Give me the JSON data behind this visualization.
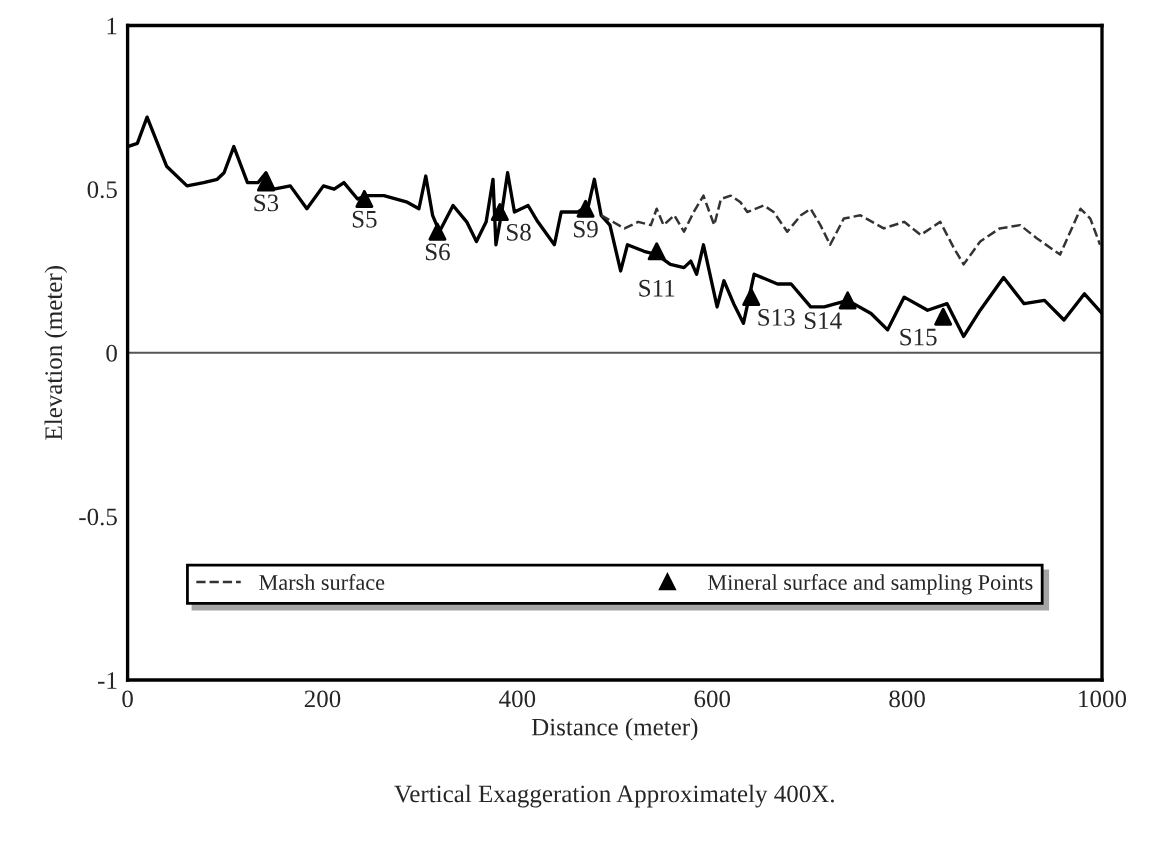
{
  "chart_data": {
    "type": "line",
    "xlabel": "Distance (meter)",
    "ylabel": "Elevation (meter)",
    "annotations": [
      "Vertical Exaggeration Approximately 400X.",
      {
        "text": "S3",
        "x": 142,
        "y": 0.52
      },
      {
        "text": "S5",
        "x": 243,
        "y": 0.47
      },
      {
        "text": "S6",
        "x": 318,
        "y": 0.37
      },
      {
        "text": "S8",
        "x": 382,
        "y": 0.43
      },
      {
        "text": "S9",
        "x": 470,
        "y": 0.44
      },
      {
        "text": "S11",
        "x": 543,
        "y": 0.31
      },
      {
        "text": "S13",
        "x": 640,
        "y": 0.17
      },
      {
        "text": "S14",
        "x": 739,
        "y": 0.16
      },
      {
        "text": "S15",
        "x": 837,
        "y": 0.11
      }
    ],
    "series": [
      {
        "color": "#000000",
        "line_style": "solid",
        "marker": "none",
        "x": [
          0,
          10,
          20,
          40,
          61,
          78,
          92,
          99,
          109,
          123,
          134,
          142,
          150,
          167,
          184,
          201,
          212,
          222,
          236,
          246,
          263,
          287,
          299,
          306,
          313,
          320,
          334,
          348,
          358,
          368,
          375,
          378,
          384,
          390,
          397,
          411,
          421,
          438,
          445,
          462,
          473,
          479,
          486,
          495,
          506,
          513,
          530,
          543,
          557,
          571,
          578,
          584,
          591,
          605,
          612,
          622,
          632,
          643,
          667,
          681,
          701,
          715,
          739,
          763,
          780,
          797,
          821,
          841,
          858,
          875,
          899,
          920,
          941,
          961,
          982,
          1000
        ],
        "values": [
          0.63,
          0.64,
          0.72,
          0.57,
          0.51,
          0.52,
          0.53,
          0.55,
          0.63,
          0.52,
          0.52,
          0.55,
          0.5,
          0.51,
          0.44,
          0.51,
          0.5,
          0.52,
          0.47,
          0.48,
          0.48,
          0.46,
          0.44,
          0.54,
          0.42,
          0.37,
          0.45,
          0.4,
          0.34,
          0.4,
          0.53,
          0.33,
          0.43,
          0.55,
          0.43,
          0.45,
          0.4,
          0.33,
          0.43,
          0.43,
          0.45,
          0.53,
          0.42,
          0.39,
          0.25,
          0.33,
          0.31,
          0.3,
          0.27,
          0.26,
          0.28,
          0.24,
          0.33,
          0.14,
          0.22,
          0.15,
          0.09,
          0.24,
          0.21,
          0.21,
          0.14,
          0.14,
          0.16,
          0.12,
          0.07,
          0.17,
          0.13,
          0.15,
          0.05,
          0.13,
          0.23,
          0.15,
          0.16,
          0.1,
          0.18,
          0.12
        ]
      },
      {
        "name": "Marsh surface",
        "color": "#333333",
        "line_style": "dashed",
        "marker": "none",
        "x": [
          486,
          510,
          524,
          537,
          543,
          550,
          561,
          571,
          581,
          591,
          602,
          609,
          619,
          629,
          636,
          653,
          663,
          677,
          691,
          701,
          711,
          721,
          735,
          752,
          776,
          797,
          814,
          834,
          848,
          858,
          875,
          895,
          916,
          933,
          957,
          978,
          988,
          998
        ],
        "values": [
          0.42,
          0.38,
          0.4,
          0.39,
          0.44,
          0.39,
          0.42,
          0.37,
          0.43,
          0.48,
          0.39,
          0.47,
          0.48,
          0.46,
          0.43,
          0.45,
          0.43,
          0.37,
          0.42,
          0.44,
          0.39,
          0.33,
          0.41,
          0.42,
          0.38,
          0.4,
          0.36,
          0.4,
          0.32,
          0.27,
          0.34,
          0.38,
          0.39,
          0.35,
          0.3,
          0.44,
          0.41,
          0.33
        ]
      },
      {
        "type": "scatter",
        "name": "Mineral surface and sampling Points",
        "color": "#000000",
        "marker": "triangle",
        "x": [
          142,
          243,
          318,
          382,
          470,
          543,
          640,
          739,
          837
        ],
        "values": [
          0.52,
          0.47,
          0.37,
          0.43,
          0.44,
          0.31,
          0.17,
          0.16,
          0.11
        ]
      }
    ],
    "xlim": [
      0,
      1000
    ],
    "ylim": [
      -1,
      1
    ],
    "xticks": [
      0,
      200,
      400,
      600,
      800,
      1000
    ],
    "yticks": [
      -1,
      -0.5,
      0,
      0.5,
      1
    ],
    "ref_lines": [
      {
        "axis": "y",
        "value": 0,
        "color": "#555555"
      }
    ],
    "grid": false,
    "legend": "bottom"
  }
}
